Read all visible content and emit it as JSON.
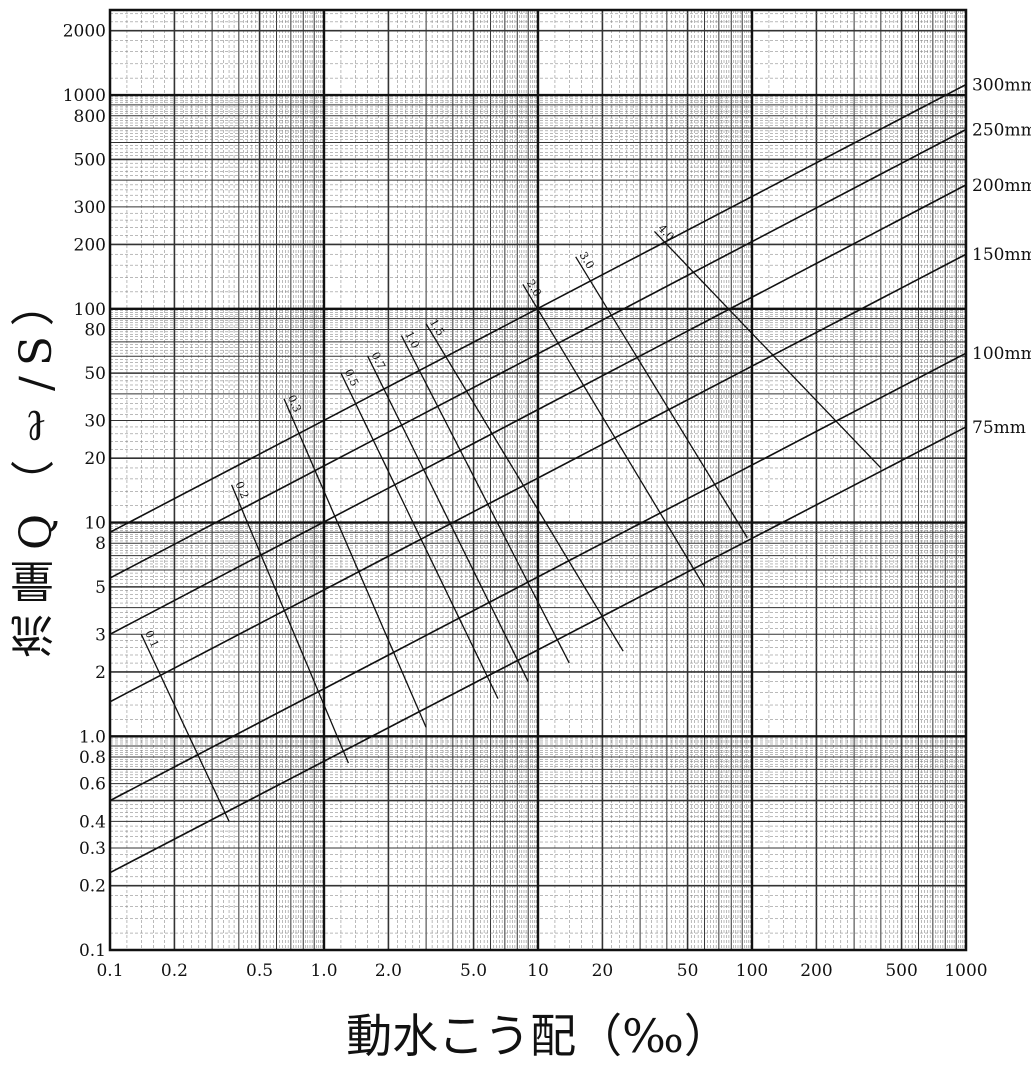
{
  "chart_data": {
    "type": "line",
    "title": "",
    "xlabel": "動水こう配（‰）",
    "ylabel": "流量Q（ℓ/S）",
    "x_scale": "log",
    "y_scale": "log",
    "xlim": [
      0.1,
      1000
    ],
    "ylim": [
      0.1,
      2500
    ],
    "grid": true,
    "x_tick_labels": [
      {
        "value": 0.1,
        "label": "0.1"
      },
      {
        "value": 0.2,
        "label": "0.2"
      },
      {
        "value": 0.5,
        "label": "0.5"
      },
      {
        "value": 1,
        "label": "1.0"
      },
      {
        "value": 2,
        "label": "2.0"
      },
      {
        "value": 5,
        "label": "5.0"
      },
      {
        "value": 10,
        "label": "10"
      },
      {
        "value": 20,
        "label": "20"
      },
      {
        "value": 50,
        "label": "50"
      },
      {
        "value": 100,
        "label": "100"
      },
      {
        "value": 200,
        "label": "200"
      },
      {
        "value": 500,
        "label": "500"
      },
      {
        "value": 1000,
        "label": "1000"
      }
    ],
    "y_tick_labels": [
      {
        "value": 0.1,
        "label": "0.1"
      },
      {
        "value": 0.2,
        "label": "0.2"
      },
      {
        "value": 0.3,
        "label": "0.3"
      },
      {
        "value": 0.4,
        "label": "0.4"
      },
      {
        "value": 0.6,
        "label": "0.6"
      },
      {
        "value": 0.8,
        "label": "0.8"
      },
      {
        "value": 1,
        "label": "1.0"
      },
      {
        "value": 2,
        "label": "2"
      },
      {
        "value": 3,
        "label": "3"
      },
      {
        "value": 5,
        "label": "5"
      },
      {
        "value": 8,
        "label": "8"
      },
      {
        "value": 10,
        "label": "10"
      },
      {
        "value": 20,
        "label": "20"
      },
      {
        "value": 30,
        "label": "30"
      },
      {
        "value": 50,
        "label": "50"
      },
      {
        "value": 80,
        "label": "80"
      },
      {
        "value": 100,
        "label": "100"
      },
      {
        "value": 200,
        "label": "200"
      },
      {
        "value": 300,
        "label": "300"
      },
      {
        "value": 500,
        "label": "500"
      },
      {
        "value": 800,
        "label": "800"
      },
      {
        "value": 1000,
        "label": "1000"
      },
      {
        "value": 2000,
        "label": "2000"
      }
    ],
    "series": [
      {
        "name": "75mm",
        "x": [
          0.1,
          1000
        ],
        "y": [
          0.23,
          28
        ]
      },
      {
        "name": "100mm",
        "x": [
          0.1,
          1000
        ],
        "y": [
          0.5,
          62
        ]
      },
      {
        "name": "150mm",
        "x": [
          0.1,
          1000
        ],
        "y": [
          1.45,
          180
        ]
      },
      {
        "name": "200mm",
        "x": [
          0.1,
          1000
        ],
        "y": [
          3.0,
          380
        ]
      },
      {
        "name": "250mm",
        "x": [
          0.1,
          1000
        ],
        "y": [
          5.5,
          690
        ]
      },
      {
        "name": "300mm",
        "x": [
          0.1,
          1000
        ],
        "y": [
          9.0,
          1120
        ]
      }
    ],
    "velocity_lines": [
      {
        "label": "0.1",
        "x": [
          0.14,
          0.36
        ],
        "y": [
          3.0,
          0.4
        ]
      },
      {
        "label": "0.2",
        "x": [
          0.37,
          1.3
        ],
        "y": [
          15.0,
          0.75
        ]
      },
      {
        "label": "0.3",
        "x": [
          0.65,
          3.0
        ],
        "y": [
          38.0,
          1.1
        ]
      },
      {
        "label": "0.5",
        "x": [
          1.2,
          6.5
        ],
        "y": [
          50.0,
          1.5
        ]
      },
      {
        "label": "0.7",
        "x": [
          1.6,
          9.0
        ],
        "y": [
          60.0,
          1.8
        ]
      },
      {
        "label": "1.0",
        "x": [
          2.3,
          14.0
        ],
        "y": [
          75.0,
          2.2
        ]
      },
      {
        "label": "1.5",
        "x": [
          3.0,
          25.0
        ],
        "y": [
          85.0,
          2.5
        ]
      },
      {
        "label": "2.0",
        "x": [
          8.5,
          60.0
        ],
        "y": [
          130.0,
          5.0
        ]
      },
      {
        "label": "3.0",
        "x": [
          15.0,
          95.0
        ],
        "y": [
          175.0,
          8.5
        ]
      },
      {
        "label": "4.0",
        "x": [
          35.0,
          400.0
        ],
        "y": [
          230.0,
          18.0
        ]
      }
    ]
  }
}
